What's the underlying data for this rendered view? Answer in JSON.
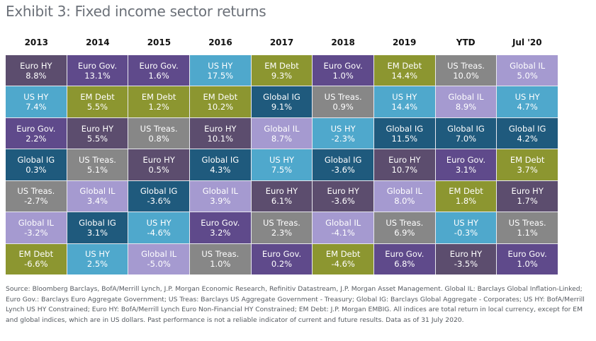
{
  "title": "Exhibit 3: Fixed income sector returns",
  "sector_colors": {
    "Euro HY": "#5c4d6e",
    "Euro Gov.": "#5f4a8b",
    "US HY": "#4fa8cc",
    "EM Debt": "#8c9630",
    "US Treas.": "#878787",
    "Global IL": "#a59ad0",
    "Global IG": "#1f5a7d"
  },
  "chart_data": {
    "type": "table",
    "title": "Exhibit 3: Fixed income sector returns",
    "columns": [
      "2013",
      "2014",
      "2015",
      "2016",
      "2017",
      "2018",
      "2019",
      "YTD",
      "Jul '20"
    ],
    "unit": "% total return",
    "ranking": "descending by return within each column",
    "series": [
      {
        "column": "2013",
        "cells": [
          {
            "sector": "Euro HY",
            "value": "8.8%"
          },
          {
            "sector": "US HY",
            "value": "7.4%"
          },
          {
            "sector": "Euro Gov.",
            "value": "2.2%"
          },
          {
            "sector": "Global IG",
            "value": "0.3%"
          },
          {
            "sector": "US Treas.",
            "value": "-2.7%"
          },
          {
            "sector": "Global IL",
            "value": "-3.2%"
          },
          {
            "sector": "EM Debt",
            "value": "-6.6%"
          }
        ]
      },
      {
        "column": "2014",
        "cells": [
          {
            "sector": "Euro Gov.",
            "value": "13.1%"
          },
          {
            "sector": "EM Debt",
            "value": "5.5%"
          },
          {
            "sector": "Euro HY",
            "value": "5.5%"
          },
          {
            "sector": "US Treas.",
            "value": "5.1%"
          },
          {
            "sector": "Global IL",
            "value": "3.4%"
          },
          {
            "sector": "Global IG",
            "value": "3.1%"
          },
          {
            "sector": "US HY",
            "value": "2.5%"
          }
        ]
      },
      {
        "column": "2015",
        "cells": [
          {
            "sector": "Euro Gov.",
            "value": "1.6%"
          },
          {
            "sector": "EM Debt",
            "value": "1.2%"
          },
          {
            "sector": "US Treas.",
            "value": "0.8%"
          },
          {
            "sector": "Euro HY",
            "value": "0.5%"
          },
          {
            "sector": "Global IG",
            "value": "-3.6%"
          },
          {
            "sector": "US HY",
            "value": "-4.6%"
          },
          {
            "sector": "Global IL",
            "value": "-5.0%"
          }
        ]
      },
      {
        "column": "2016",
        "cells": [
          {
            "sector": "US HY",
            "value": "17.5%"
          },
          {
            "sector": "EM Debt",
            "value": "10.2%"
          },
          {
            "sector": "Euro HY",
            "value": "10.1%"
          },
          {
            "sector": "Global IG",
            "value": "4.3%"
          },
          {
            "sector": "Global IL",
            "value": "3.9%"
          },
          {
            "sector": "Euro Gov.",
            "value": "3.2%"
          },
          {
            "sector": "US Treas.",
            "value": "1.0%"
          }
        ]
      },
      {
        "column": "2017",
        "cells": [
          {
            "sector": "EM Debt",
            "value": "9.3%"
          },
          {
            "sector": "Global IG",
            "value": "9.1%"
          },
          {
            "sector": "Global IL",
            "value": "8.7%"
          },
          {
            "sector": "US HY",
            "value": "7.5%"
          },
          {
            "sector": "Euro HY",
            "value": "6.1%"
          },
          {
            "sector": "US Treas.",
            "value": "2.3%"
          },
          {
            "sector": "Euro Gov.",
            "value": "0.2%"
          }
        ]
      },
      {
        "column": "2018",
        "cells": [
          {
            "sector": "Euro Gov.",
            "value": "1.0%"
          },
          {
            "sector": "US Treas.",
            "value": "0.9%"
          },
          {
            "sector": "US HY",
            "value": "-2.3%"
          },
          {
            "sector": "Global IG",
            "value": "-3.6%"
          },
          {
            "sector": "Euro HY",
            "value": "-3.6%"
          },
          {
            "sector": "Global IL",
            "value": "-4.1%"
          },
          {
            "sector": "EM Debt",
            "value": "-4.6%"
          }
        ]
      },
      {
        "column": "2019",
        "cells": [
          {
            "sector": "EM Debt",
            "value": "14.4%"
          },
          {
            "sector": "US HY",
            "value": "14.4%"
          },
          {
            "sector": "Global IG",
            "value": "11.5%"
          },
          {
            "sector": "Euro HY",
            "value": "10.7%"
          },
          {
            "sector": "Global IL",
            "value": "8.0%"
          },
          {
            "sector": "US Treas.",
            "value": "6.9%"
          },
          {
            "sector": "Euro Gov.",
            "value": "6.8%"
          }
        ]
      },
      {
        "column": "YTD",
        "cells": [
          {
            "sector": "US Treas.",
            "value": "10.0%"
          },
          {
            "sector": "Global IL",
            "value": "8.9%"
          },
          {
            "sector": "Global IG",
            "value": "7.0%"
          },
          {
            "sector": "Euro Gov.",
            "value": "3.1%"
          },
          {
            "sector": "EM Debt",
            "value": "1.8%"
          },
          {
            "sector": "US HY",
            "value": "-0.3%"
          },
          {
            "sector": "Euro HY",
            "value": "-3.5%"
          }
        ]
      },
      {
        "column": "Jul '20",
        "cells": [
          {
            "sector": "Global IL",
            "value": "5.0%"
          },
          {
            "sector": "US HY",
            "value": "4.7%"
          },
          {
            "sector": "Global IG",
            "value": "4.2%"
          },
          {
            "sector": "EM Debt",
            "value": "3.7%"
          },
          {
            "sector": "Euro HY",
            "value": "1.7%"
          },
          {
            "sector": "US Treas.",
            "value": "1.1%"
          },
          {
            "sector": "Euro Gov.",
            "value": "1.0%"
          }
        ]
      }
    ]
  },
  "source_note": "Source: Bloomberg Barclays, BofA/Merrill Lynch, J.P. Morgan Economic Research, Refinitiv Datastream, J.P. Morgan Asset Management. Global IL: Barclays Global Inflation-Linked; Euro Gov.: Barclays Euro Aggregate Government; US Treas: Barclays US Aggregate Government - Treasury; Global IG: Barclays Global Aggregate - Corporates; US HY: BofA/Merrill Lynch US HY Constrained; Euro HY: BofA/Merrill Lynch Euro Non-Financial HY Constrained; EM Debt: J.P. Morgan EMBIG. All indices are total return in local currency, except for EM and global indices, which are in US dollars. Past performance is not a reliable indicator of current and future results. Data as of 31 July 2020."
}
